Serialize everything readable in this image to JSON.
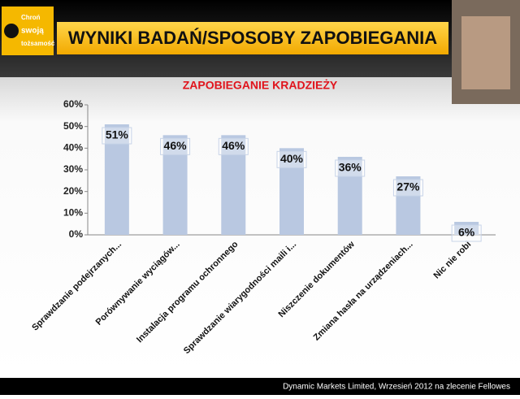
{
  "logo": [
    "Chroń",
    "swoją",
    "tożsamość"
  ],
  "header": "WYNIKI BADAŃ/SPOSOBY ZAPOBIEGANIA",
  "footer": "Dynamic Markets Limited, Wrzesień 2012 na zlecenie Fellowes",
  "chart_data": {
    "type": "bar",
    "title": "ZAPOBIEGANIE KRADZIEŻY",
    "categories": [
      "Sprawdzanie podejrzanych...",
      "Porównywanie wyciągów...",
      "Instalacja programu ochronnego",
      "Sprawdzanie wiarygodności maili i...",
      "Niszczenie dokumentów",
      "Zmiana hasła na urządzeniach...",
      "Nic nie robi"
    ],
    "values": [
      51,
      46,
      46,
      40,
      36,
      27,
      6
    ],
    "value_labels": [
      "51%",
      "46%",
      "46%",
      "40%",
      "36%",
      "27%",
      "6%"
    ],
    "color": "#b9c8e1",
    "ylim": [
      0,
      60
    ],
    "yticks": [
      {
        "value": 0,
        "label": "0%"
      },
      {
        "value": 10,
        "label": "10%"
      },
      {
        "value": 20,
        "label": "20%"
      },
      {
        "value": 30,
        "label": "30%"
      },
      {
        "value": 40,
        "label": "40%"
      },
      {
        "value": 50,
        "label": "50%"
      },
      {
        "value": 60,
        "label": "60%"
      }
    ],
    "grid": false
  }
}
